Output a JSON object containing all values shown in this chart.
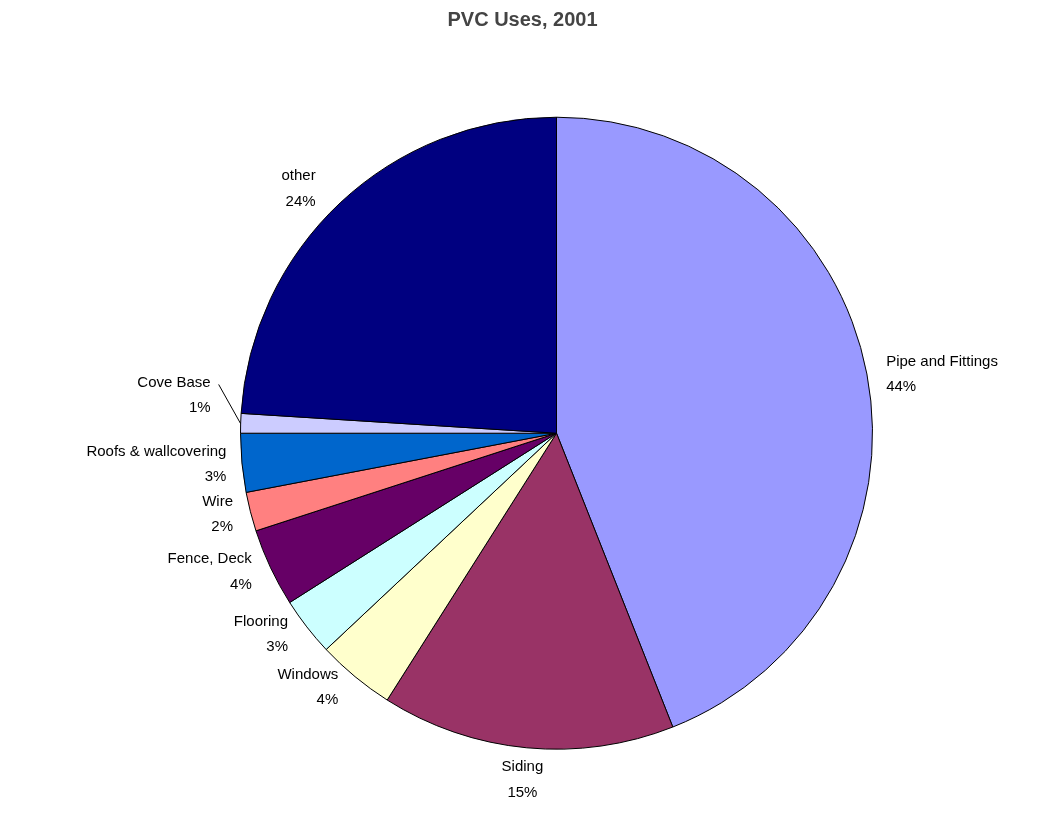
{
  "chart_data": {
    "type": "pie",
    "title": "PVC Uses, 2001",
    "categories": [
      "Pipe and Fittings",
      "Siding",
      "Windows",
      "Flooring",
      "Fence, Deck",
      "Wire",
      "Roofs & wallcovering",
      "Cove Base",
      "other"
    ],
    "values": [
      44,
      15,
      4,
      3,
      4,
      2,
      3,
      1,
      24
    ],
    "value_labels": [
      "44%",
      "15%",
      "4%",
      "3%",
      "4%",
      "2%",
      "3%",
      "1%",
      "24%"
    ],
    "colors": [
      "#9999ff",
      "#993366",
      "#ffffcc",
      "#ccffff",
      "#660066",
      "#ff8080",
      "#0066cc",
      "#ccccff",
      "#000080"
    ]
  }
}
